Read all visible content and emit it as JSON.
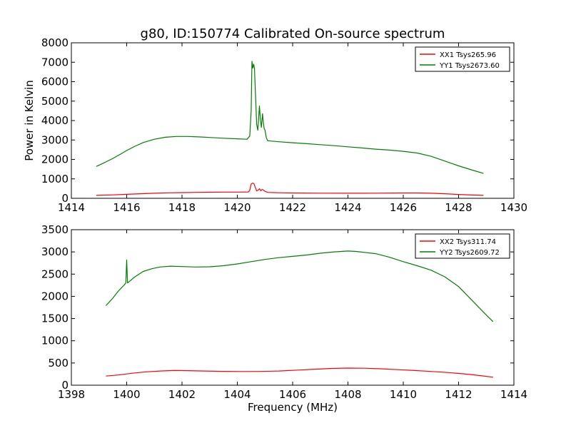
{
  "title": "g80, ID:150774 Calibrated On-source spectrum",
  "chart_data": [
    {
      "type": "line",
      "xlabel": "",
      "ylabel": "Power in Kelvin",
      "xlim": [
        1414,
        1430
      ],
      "ylim": [
        0,
        8000
      ],
      "xticks": [
        1414,
        1416,
        1418,
        1420,
        1422,
        1424,
        1426,
        1428,
        1430
      ],
      "yticks": [
        0,
        1000,
        2000,
        3000,
        4000,
        5000,
        6000,
        7000,
        8000
      ],
      "legend_position": "top-right",
      "series": [
        {
          "name": "XX1 Tsys265.96",
          "color": "#ff0000",
          "points": [
            [
              1414.9,
              150
            ],
            [
              1415.5,
              175
            ],
            [
              1416,
              205
            ],
            [
              1416.5,
              235
            ],
            [
              1417,
              262
            ],
            [
              1417.5,
              282
            ],
            [
              1418,
              295
            ],
            [
              1418.5,
              305
            ],
            [
              1419,
              312
            ],
            [
              1419.5,
              318
            ],
            [
              1420,
              320
            ],
            [
              1420.4,
              325
            ],
            [
              1420.45,
              420
            ],
            [
              1420.5,
              730
            ],
            [
              1420.55,
              780
            ],
            [
              1420.6,
              760
            ],
            [
              1420.65,
              560
            ],
            [
              1420.7,
              380
            ],
            [
              1420.75,
              420
            ],
            [
              1420.8,
              490
            ],
            [
              1420.85,
              390
            ],
            [
              1420.9,
              460
            ],
            [
              1420.95,
              420
            ],
            [
              1421,
              360
            ],
            [
              1421.1,
              305
            ],
            [
              1421.5,
              285
            ],
            [
              1422,
              275
            ],
            [
              1423,
              265
            ],
            [
              1424,
              260
            ],
            [
              1425,
              265
            ],
            [
              1426,
              275
            ],
            [
              1426.5,
              275
            ],
            [
              1427,
              262
            ],
            [
              1427.5,
              235
            ],
            [
              1428,
              200
            ],
            [
              1428.5,
              170
            ],
            [
              1428.9,
              150
            ]
          ]
        },
        {
          "name": "YY1 Tsys2673.60",
          "color": "#008000",
          "points": [
            [
              1414.9,
              1640
            ],
            [
              1415.2,
              1840
            ],
            [
              1415.5,
              2050
            ],
            [
              1415.8,
              2290
            ],
            [
              1416,
              2460
            ],
            [
              1416.3,
              2680
            ],
            [
              1416.6,
              2870
            ],
            [
              1417,
              3040
            ],
            [
              1417.4,
              3140
            ],
            [
              1417.8,
              3180
            ],
            [
              1418.2,
              3180
            ],
            [
              1418.6,
              3160
            ],
            [
              1419,
              3130
            ],
            [
              1419.5,
              3090
            ],
            [
              1420,
              3060
            ],
            [
              1420.35,
              3040
            ],
            [
              1420.45,
              3200
            ],
            [
              1420.5,
              4500
            ],
            [
              1420.53,
              7050
            ],
            [
              1420.56,
              6700
            ],
            [
              1420.59,
              6900
            ],
            [
              1420.62,
              6700
            ],
            [
              1420.66,
              5200
            ],
            [
              1420.7,
              3800
            ],
            [
              1420.74,
              3500
            ],
            [
              1420.77,
              4100
            ],
            [
              1420.8,
              4750
            ],
            [
              1420.83,
              4100
            ],
            [
              1420.87,
              3650
            ],
            [
              1420.91,
              4350
            ],
            [
              1420.94,
              3900
            ],
            [
              1420.97,
              3600
            ],
            [
              1421,
              3500
            ],
            [
              1421.05,
              3100
            ],
            [
              1421.1,
              2960
            ],
            [
              1421.5,
              2910
            ],
            [
              1422,
              2860
            ],
            [
              1422.5,
              2810
            ],
            [
              1423,
              2760
            ],
            [
              1423.5,
              2710
            ],
            [
              1424,
              2650
            ],
            [
              1424.5,
              2590
            ],
            [
              1425,
              2530
            ],
            [
              1425.5,
              2480
            ],
            [
              1426,
              2420
            ],
            [
              1426.5,
              2330
            ],
            [
              1427,
              2160
            ],
            [
              1427.5,
              1920
            ],
            [
              1428,
              1670
            ],
            [
              1428.5,
              1450
            ],
            [
              1428.9,
              1280
            ]
          ]
        }
      ]
    },
    {
      "type": "line",
      "xlabel": "Frequency (MHz)",
      "ylabel": "",
      "xlim": [
        1398,
        1414
      ],
      "ylim": [
        0,
        3500
      ],
      "xticks": [
        1398,
        1400,
        1402,
        1404,
        1406,
        1408,
        1410,
        1412,
        1414
      ],
      "yticks": [
        0,
        500,
        1000,
        1500,
        2000,
        2500,
        3000,
        3500
      ],
      "legend_position": "top-right",
      "series": [
        {
          "name": "XX2 Tsys311.74",
          "color": "#ff0000",
          "points": [
            [
              1399.25,
              205
            ],
            [
              1399.7,
              230
            ],
            [
              1400.2,
              270
            ],
            [
              1400.7,
              300
            ],
            [
              1401.2,
              320
            ],
            [
              1401.7,
              330
            ],
            [
              1402.2,
              328
            ],
            [
              1402.8,
              320
            ],
            [
              1403.5,
              312
            ],
            [
              1404.2,
              308
            ],
            [
              1404.8,
              310
            ],
            [
              1405.5,
              320
            ],
            [
              1406.2,
              340
            ],
            [
              1406.8,
              360
            ],
            [
              1407.4,
              378
            ],
            [
              1408,
              385
            ],
            [
              1408.6,
              382
            ],
            [
              1409.2,
              370
            ],
            [
              1409.8,
              350
            ],
            [
              1410.4,
              330
            ],
            [
              1411,
              310
            ],
            [
              1411.6,
              285
            ],
            [
              1412.2,
              255
            ],
            [
              1412.8,
              215
            ],
            [
              1413.25,
              180
            ]
          ]
        },
        {
          "name": "YY2 Tsys2609.72",
          "color": "#008000",
          "points": [
            [
              1399.25,
              1790
            ],
            [
              1399.5,
              1960
            ],
            [
              1399.7,
              2120
            ],
            [
              1399.9,
              2250
            ],
            [
              1399.97,
              2300
            ],
            [
              1400,
              2820
            ],
            [
              1400.03,
              2300
            ],
            [
              1400.3,
              2440
            ],
            [
              1400.6,
              2560
            ],
            [
              1400.9,
              2620
            ],
            [
              1401.2,
              2660
            ],
            [
              1401.6,
              2680
            ],
            [
              1402,
              2670
            ],
            [
              1402.5,
              2660
            ],
            [
              1403,
              2665
            ],
            [
              1403.5,
              2690
            ],
            [
              1404,
              2730
            ],
            [
              1404.5,
              2780
            ],
            [
              1405,
              2830
            ],
            [
              1405.5,
              2870
            ],
            [
              1406,
              2900
            ],
            [
              1406.5,
              2930
            ],
            [
              1407,
              2970
            ],
            [
              1407.5,
              3000
            ],
            [
              1408,
              3020
            ],
            [
              1408.3,
              3010
            ],
            [
              1408.6,
              2990
            ],
            [
              1409,
              2960
            ],
            [
              1409.5,
              2880
            ],
            [
              1410,
              2780
            ],
            [
              1410.5,
              2690
            ],
            [
              1411,
              2590
            ],
            [
              1411.5,
              2440
            ],
            [
              1412,
              2220
            ],
            [
              1412.5,
              1900
            ],
            [
              1413,
              1580
            ],
            [
              1413.25,
              1430
            ]
          ]
        }
      ]
    }
  ]
}
